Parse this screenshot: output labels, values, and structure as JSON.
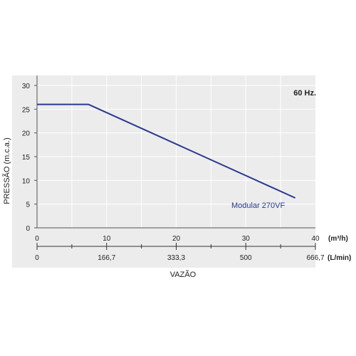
{
  "chart_data": {
    "type": "line",
    "frequency_label": "60 Hz.",
    "ylabel": "PRESSÃO (m.c.a.)",
    "xlabel": "VAZÃO",
    "x_unit_primary": "(m³/h)",
    "x_unit_secondary": "(L/min)",
    "ylim": [
      0,
      30
    ],
    "xlim": [
      0,
      40
    ],
    "y_ticks": [
      "0",
      "5",
      "10",
      "15",
      "20",
      "25",
      "30"
    ],
    "x_ticks_primary": [
      "0",
      "10",
      "20",
      "30",
      "40"
    ],
    "x_ticks_secondary": [
      "0",
      "166,7",
      "333,3",
      "500",
      "666,7"
    ],
    "grid": true,
    "series": [
      {
        "name": "Modular 270VF",
        "color": "#2b3990",
        "x": [
          0,
          7.4,
          37.1
        ],
        "y": [
          26,
          26,
          6.3
        ]
      }
    ],
    "colors": {
      "plot_bg": "#ececec",
      "grid": "#ffffff",
      "axis": "#555555",
      "series": "#2b3990"
    }
  }
}
